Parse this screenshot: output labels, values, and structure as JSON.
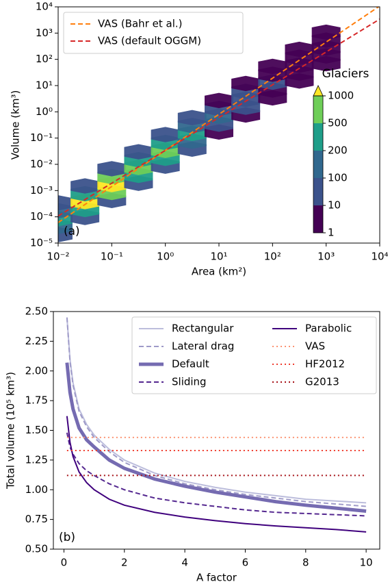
{
  "chart_data": [
    {
      "type": "hexbin",
      "panel_label": "(a)",
      "x_label": "Area (km²)",
      "y_label": "Volume (km³)",
      "xscale": "log",
      "yscale": "log",
      "xlim": [
        0.01,
        10000
      ],
      "ylim": [
        1e-05,
        10000
      ],
      "xticks": [
        {
          "value": 0.01,
          "label": "10⁻²"
        },
        {
          "value": 0.1,
          "label": "10⁻¹"
        },
        {
          "value": 1,
          "label": "10⁰"
        },
        {
          "value": 10,
          "label": "10¹"
        },
        {
          "value": 100,
          "label": "10²"
        },
        {
          "value": 1000,
          "label": "10³"
        },
        {
          "value": 10000,
          "label": "10⁴"
        }
      ],
      "yticks": [
        {
          "value": 1e-05,
          "label": "10⁻⁵"
        },
        {
          "value": 0.0001,
          "label": "10⁻⁴"
        },
        {
          "value": 0.001,
          "label": "10⁻³"
        },
        {
          "value": 0.01,
          "label": "10⁻²"
        },
        {
          "value": 0.1,
          "label": "10⁻¹"
        },
        {
          "value": 1,
          "label": "10⁰"
        },
        {
          "value": 10,
          "label": "10¹"
        },
        {
          "value": 100,
          "label": "10²"
        },
        {
          "value": 1000,
          "label": "10³"
        },
        {
          "value": 10000,
          "label": "10⁴"
        }
      ],
      "hexbins": {
        "x": [
          0.01,
          0.01,
          0.01,
          0.01,
          0.01,
          0.0316,
          0.0316,
          0.0316,
          0.0316,
          0.0316,
          0.1,
          0.1,
          0.1,
          0.1,
          0.1,
          0.316,
          0.316,
          0.316,
          0.316,
          0.316,
          1,
          1,
          1,
          1,
          1,
          3.16,
          3.16,
          3.16,
          3.16,
          3.16,
          10,
          10,
          10,
          10,
          10,
          31.6,
          31.6,
          31.6,
          31.6,
          31.6,
          100,
          100,
          100,
          100,
          100,
          316,
          316,
          316,
          316,
          316,
          1000,
          1000,
          1000,
          1000,
          1000
        ],
        "y": [
          2.1e-05,
          4.3e-05,
          8.5e-05,
          0.00017,
          0.00034,
          9.5e-05,
          0.00019,
          0.00038,
          0.00076,
          0.0015,
          0.00042,
          0.00085,
          0.0017,
          0.0034,
          0.0068,
          0.0019,
          0.0038,
          0.0076,
          0.015,
          0.03,
          0.0085,
          0.017,
          0.034,
          0.068,
          0.136,
          0.038,
          0.076,
          0.15,
          0.3,
          0.6,
          0.17,
          0.34,
          0.68,
          1.35,
          2.7,
          0.76,
          1.5,
          3.0,
          6.0,
          12,
          3.4,
          6.8,
          13.5,
          27,
          54,
          15,
          30,
          60,
          120,
          240,
          68,
          135,
          270,
          540,
          1080
        ],
        "counts": [
          20,
          150,
          400,
          150,
          20,
          50,
          400,
          1000,
          400,
          50,
          60,
          500,
          1000,
          500,
          60,
          50,
          400,
          800,
          400,
          50,
          30,
          200,
          500,
          200,
          30,
          15,
          100,
          300,
          100,
          15,
          8,
          50,
          150,
          50,
          8,
          4,
          20,
          60,
          20,
          4,
          2,
          8,
          20,
          8,
          2,
          1,
          3,
          8,
          3,
          1,
          1,
          1,
          2,
          1,
          1
        ]
      },
      "colorbar": {
        "title": "Glaciers",
        "boundaries": [
          1,
          10,
          100,
          200,
          500,
          1000
        ],
        "colors": [
          "#440154",
          "#3b528b",
          "#31688e",
          "#1f9e89",
          "#6ece58"
        ],
        "extend_color": "#fde725"
      },
      "legend": "upper left",
      "x": [
        0.01,
        10000
      ],
      "series": [
        {
          "name": "VAS (Bahr et al.)",
          "color": "#ff7f0e",
          "dash": "dashed",
          "values": [
            6.05e-05,
            10752
          ]
        },
        {
          "name": "VAS (default OGGM)",
          "color": "#d62728",
          "dash": "dashed",
          "values": [
            0.0001075,
            3400
          ]
        }
      ]
    },
    {
      "type": "line",
      "panel_label": "(b)",
      "x_label": "A factor",
      "y_label": "Total volume (10⁵ km³)",
      "xlim": [
        -0.35,
        10.45
      ],
      "ylim": [
        0.5,
        2.5
      ],
      "xticks": [
        0,
        2,
        4,
        6,
        8,
        10
      ],
      "yticks": [
        {
          "value": 0.5,
          "label": "0.50"
        },
        {
          "value": 0.75,
          "label": "0.75"
        },
        {
          "value": 1,
          "label": "1.00"
        },
        {
          "value": 1.25,
          "label": "1.25"
        },
        {
          "value": 1.5,
          "label": "1.50"
        },
        {
          "value": 1.75,
          "label": "1.75"
        },
        {
          "value": 2,
          "label": "2.00"
        },
        {
          "value": 2.25,
          "label": "2.25"
        },
        {
          "value": 2.5,
          "label": "2.50"
        }
      ],
      "legend": "upper right",
      "x": [
        0.1,
        0.2,
        0.3,
        0.5,
        0.75,
        1,
        1.5,
        2,
        3,
        4,
        5,
        6,
        7,
        8,
        9,
        10
      ],
      "series": [
        {
          "name": "Rectangular",
          "color": "#bcbddc",
          "dash": "solid",
          "width": 2,
          "values": [
            2.45,
            2.1,
            1.9,
            1.68,
            1.55,
            1.46,
            1.34,
            1.25,
            1.14,
            1.07,
            1.02,
            0.98,
            0.95,
            0.92,
            0.905,
            0.89
          ]
        },
        {
          "name": "Lateral drag",
          "color": "#9e9ac8",
          "dash": "dashed",
          "width": 2,
          "values": [
            2.45,
            2.08,
            1.88,
            1.66,
            1.53,
            1.44,
            1.32,
            1.23,
            1.12,
            1.05,
            1.0,
            0.96,
            0.93,
            0.9,
            0.88,
            0.86
          ]
        },
        {
          "name": "Default",
          "color": "#756bb1",
          "dash": "solid",
          "width": 5,
          "values": [
            2.07,
            1.82,
            1.68,
            1.52,
            1.42,
            1.36,
            1.25,
            1.18,
            1.09,
            1.03,
            0.98,
            0.94,
            0.9,
            0.87,
            0.845,
            0.82
          ]
        },
        {
          "name": "Sliding",
          "color": "#54278f",
          "dash": "dashed",
          "width": 2,
          "values": [
            1.48,
            1.36,
            1.3,
            1.22,
            1.16,
            1.12,
            1.05,
            1.0,
            0.93,
            0.89,
            0.86,
            0.83,
            0.81,
            0.8,
            0.79,
            0.78
          ]
        },
        {
          "name": "Parabolic",
          "color": "#3f007d",
          "dash": "solid",
          "width": 2,
          "values": [
            1.62,
            1.4,
            1.28,
            1.15,
            1.06,
            1.0,
            0.92,
            0.87,
            0.81,
            0.77,
            0.74,
            0.715,
            0.695,
            0.68,
            0.665,
            0.645
          ]
        },
        {
          "name": "VAS",
          "color": "#fc9272",
          "dash": "dotted",
          "width": 2,
          "x": [
            0.1,
            10
          ],
          "values": [
            1.44,
            1.44
          ]
        },
        {
          "name": "HF2012",
          "color": "#ef3b2c",
          "dash": "dotted",
          "width": 2,
          "x": [
            0.1,
            10
          ],
          "values": [
            1.33,
            1.33
          ]
        },
        {
          "name": "G2013",
          "color": "#a50f15",
          "dash": "dotted",
          "width": 2,
          "x": [
            0.1,
            10
          ],
          "values": [
            1.12,
            1.12
          ]
        }
      ]
    }
  ]
}
